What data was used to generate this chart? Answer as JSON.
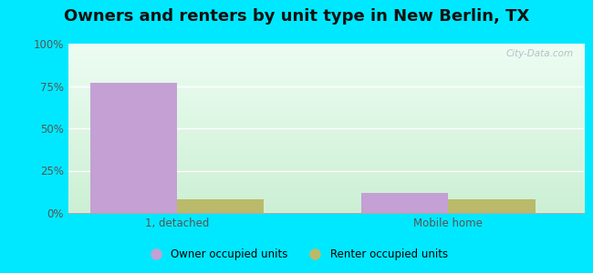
{
  "title": "Owners and renters by unit type in New Berlin, TX",
  "categories": [
    "1, detached",
    "Mobile home"
  ],
  "owner_values": [
    77.0,
    12.0
  ],
  "renter_values": [
    8.0,
    8.0
  ],
  "owner_color": "#c4a0d4",
  "renter_color": "#baba6a",
  "ylim": [
    0,
    100
  ],
  "yticks": [
    0,
    25,
    50,
    75,
    100
  ],
  "ytick_labels": [
    "0%",
    "25%",
    "50%",
    "75%",
    "100%"
  ],
  "bar_width": 0.32,
  "bg_outer": "#00e8ff",
  "legend_owner": "Owner occupied units",
  "legend_renter": "Renter occupied units",
  "watermark": "City-Data.com",
  "title_fontsize": 13,
  "axis_fontsize": 8.5,
  "x_positions": [
    0.35,
    1.35
  ],
  "xlim": [
    -0.05,
    1.85
  ]
}
